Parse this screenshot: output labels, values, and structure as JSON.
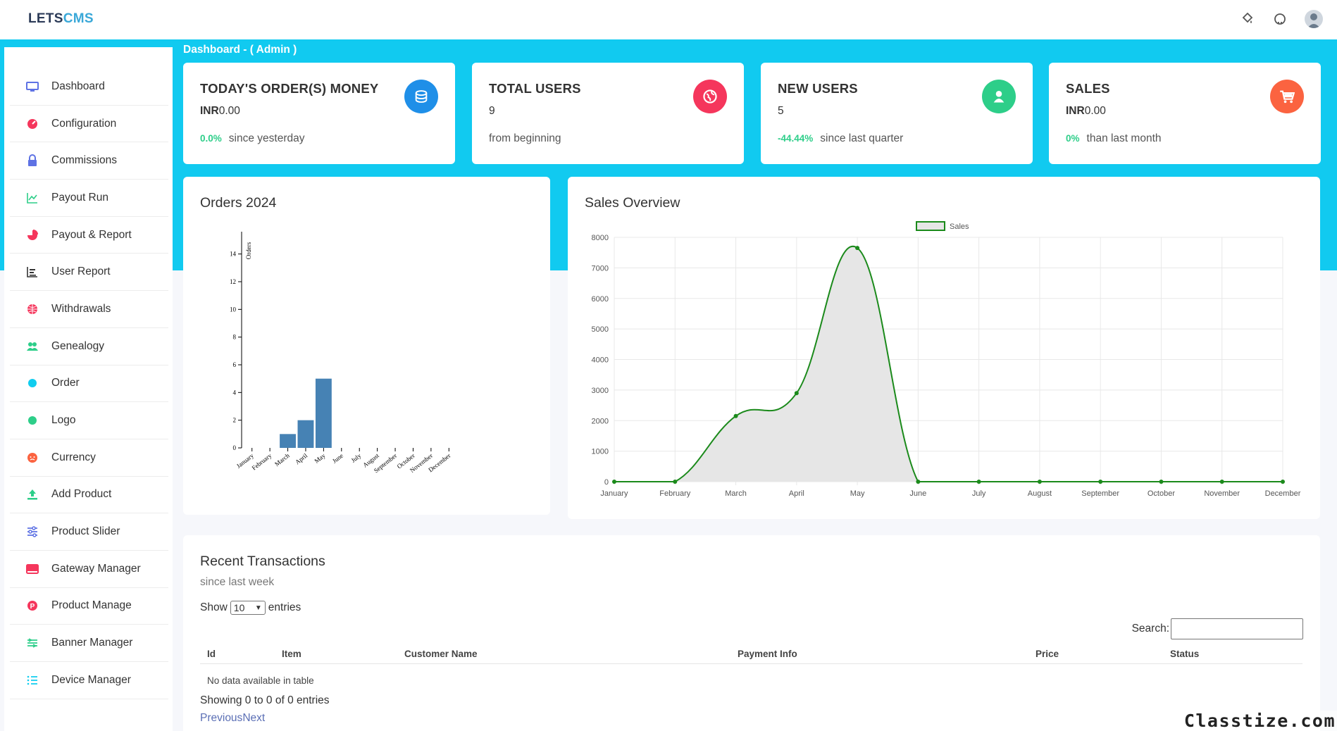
{
  "app": {
    "logo_part1": "LETS",
    "logo_part2": "CMS"
  },
  "header": {
    "icons": [
      "paint-bucket-icon",
      "github-icon",
      "user-avatar"
    ]
  },
  "breadcrumb": "Dashboard - ( Admin )",
  "sidebar": {
    "items": [
      {
        "label": "Dashboard",
        "icon": "monitor-icon",
        "color": "#5e72e4"
      },
      {
        "label": "Configuration",
        "icon": "gauge-icon",
        "color": "#f5365c"
      },
      {
        "label": "Commissions",
        "icon": "lock-icon",
        "color": "#5e72e4"
      },
      {
        "label": "Payout Run",
        "icon": "line-chart-icon",
        "color": "#2dce89"
      },
      {
        "label": "Payout & Report",
        "icon": "pie-chart-icon",
        "color": "#f5365c"
      },
      {
        "label": "User Report",
        "icon": "bar-list-icon",
        "color": "#333333"
      },
      {
        "label": "Withdrawals",
        "icon": "globe-icon",
        "color": "#f5365c"
      },
      {
        "label": "Genealogy",
        "icon": "users-icon",
        "color": "#2dce89"
      },
      {
        "label": "Order",
        "icon": "circle-dot-icon",
        "color": "#11cdef"
      },
      {
        "label": "Logo",
        "icon": "circle-dot-icon",
        "color": "#2dce89"
      },
      {
        "label": "Currency",
        "icon": "face-icon",
        "color": "#fb6340"
      },
      {
        "label": "Add Product",
        "icon": "upload-icon",
        "color": "#2dce89"
      },
      {
        "label": "Product Slider",
        "icon": "sliders-icon",
        "color": "#5e72e4"
      },
      {
        "label": "Gateway Manager",
        "icon": "window-icon",
        "color": "#f5365c"
      },
      {
        "label": "Product Manage",
        "icon": "p-badge-icon",
        "color": "#f5365c"
      },
      {
        "label": "Banner Manager",
        "icon": "layers-icon",
        "color": "#2dce89"
      },
      {
        "label": "Device Manager",
        "icon": "list-icon",
        "color": "#11cdef"
      }
    ]
  },
  "stats": [
    {
      "title": "TODAY'S ORDER(S) MONEY",
      "value_prefix": "INR",
      "value": "0.00",
      "pct": "0.0%",
      "note": "since yesterday",
      "icon": "coins-icon",
      "color": "#1f8fe8"
    },
    {
      "title": "TOTAL USERS",
      "value_prefix": "",
      "value": "9",
      "pct": "",
      "note": "from beginning",
      "icon": "globe-icon",
      "color": "#f5365c"
    },
    {
      "title": "NEW USERS",
      "value_prefix": "",
      "value": "5",
      "pct": "-44.44%",
      "note": "since last quarter",
      "icon": "user-icon",
      "color": "#2dce89"
    },
    {
      "title": "SALES",
      "value_prefix": "INR",
      "value": "0.00",
      "pct": "0%",
      "note": "than last month",
      "icon": "cart-icon",
      "color": "#fb6340"
    }
  ],
  "orders_panel": {
    "title": "Orders 2024"
  },
  "sales_panel": {
    "title": "Sales Overview"
  },
  "chart_data": [
    {
      "type": "bar",
      "title": "",
      "ylabel": "Orders",
      "xlabel": "",
      "categories": [
        "January",
        "February",
        "March",
        "April",
        "May",
        "June",
        "July",
        "August",
        "September",
        "October",
        "November",
        "December"
      ],
      "values": [
        0,
        0,
        1,
        2,
        5,
        0,
        0,
        0,
        0,
        0,
        0,
        0
      ],
      "ylim": [
        0,
        15
      ],
      "yticks": [
        0,
        2,
        4,
        6,
        8,
        10,
        12,
        14
      ],
      "color": "#4682b4"
    },
    {
      "type": "area",
      "title": "",
      "legend": "top",
      "grid": true,
      "x": [
        "January",
        "February",
        "March",
        "April",
        "May",
        "June",
        "July",
        "August",
        "September",
        "October",
        "November",
        "December"
      ],
      "series": [
        {
          "name": "Sales",
          "values": [
            0,
            0,
            2150,
            2900,
            7650,
            0,
            0,
            0,
            0,
            0,
            0,
            0
          ],
          "color": "#1b8a1b",
          "fill": "#e6e6e6"
        }
      ],
      "ylim": [
        0,
        8000
      ],
      "yticks": [
        0,
        1000,
        2000,
        3000,
        4000,
        5000,
        6000,
        7000,
        8000
      ]
    }
  ],
  "transactions": {
    "title": "Recent Transactions",
    "subtitle": "since last week",
    "show_label": "Show",
    "entries_value": "10",
    "entries_label": "entries",
    "search_label": "Search:",
    "columns": [
      "Id",
      "Item",
      "Customer Name",
      "Payment Info",
      "Price",
      "Status"
    ],
    "empty_text": "No data available in table",
    "info": "Showing 0 to 0 of 0 entries",
    "prev": "Previous",
    "next": "Next"
  },
  "watermark": "Classtize.com"
}
